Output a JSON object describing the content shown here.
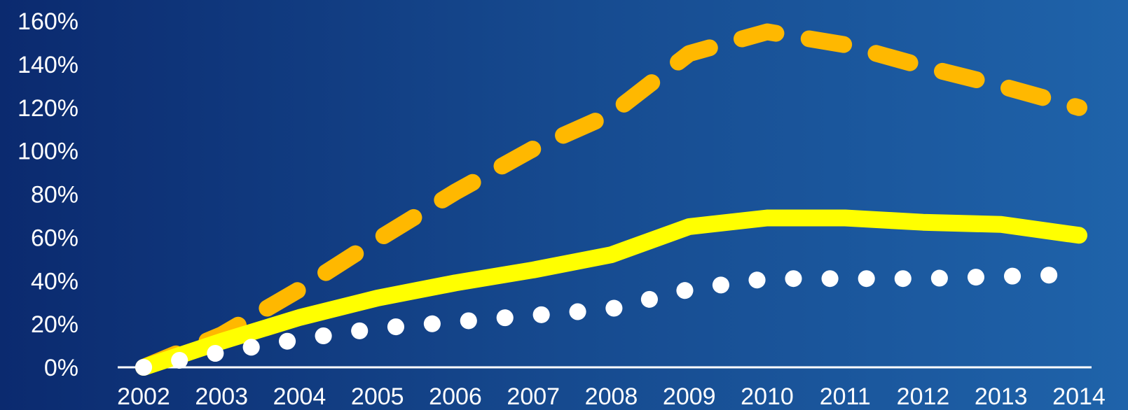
{
  "chart_data": {
    "type": "line",
    "title": "",
    "xlabel": "",
    "ylabel": "",
    "categories": [
      "2002",
      "2003",
      "2004",
      "2005",
      "2006",
      "2007",
      "2008",
      "2009",
      "2010",
      "2011",
      "2012",
      "2013",
      "2014"
    ],
    "y_tick_labels": [
      "0%",
      "20%",
      "40%",
      "60%",
      "80%",
      "100%",
      "120%",
      "140%",
      "160%"
    ],
    "ylim": [
      0,
      160
    ],
    "grid": false,
    "legend": "none",
    "series": [
      {
        "values": [
          0,
          15,
          36,
          59,
          81,
          101,
          117,
          145,
          155,
          149,
          139,
          130,
          120
        ],
        "style": "dashed",
        "color": "#ffb800"
      },
      {
        "values": [
          0,
          12,
          23,
          32,
          39,
          45,
          52,
          65,
          69,
          69,
          67,
          66,
          61
        ],
        "style": "solid",
        "color": "#ffff00"
      },
      {
        "values": [
          0,
          7,
          13,
          18,
          21,
          24,
          27,
          36,
          41,
          41,
          41,
          42,
          43
        ],
        "style": "dotted",
        "color": "#ffffff"
      }
    ]
  }
}
